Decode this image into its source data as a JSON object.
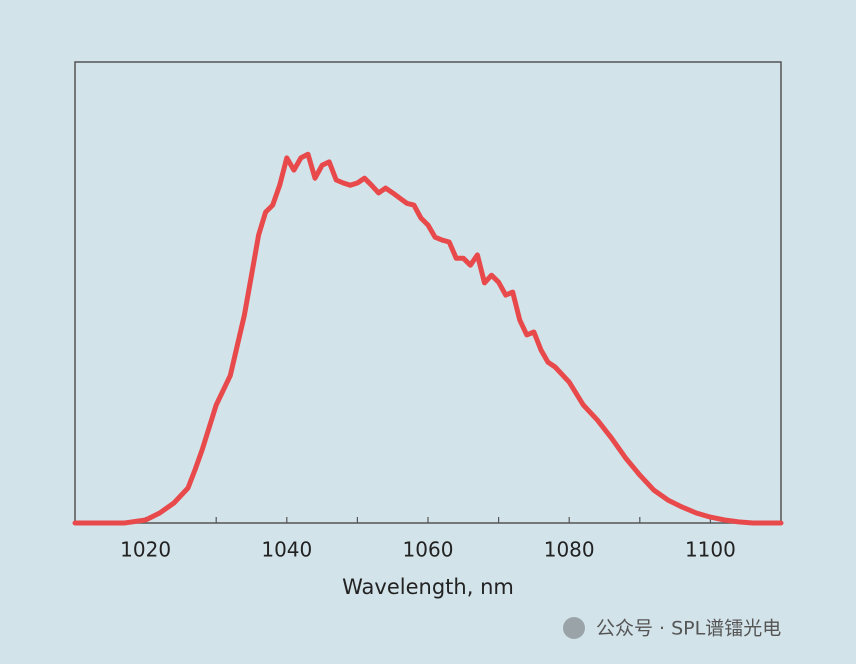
{
  "chart_data": {
    "type": "line",
    "xlabel": "Wavelength, nm",
    "xlim": [
      1010,
      1110
    ],
    "xticks": [
      1020,
      1040,
      1060,
      1080,
      1100
    ],
    "xminorticks": [
      1030,
      1050,
      1070,
      1090
    ],
    "ylim": [
      0,
      1.25
    ],
    "series": [
      {
        "color": "#e84a4c",
        "x": [
          1010,
          1017,
          1020,
          1022,
          1024,
          1026,
          1027,
          1028,
          1030,
          1032,
          1034,
          1035,
          1036,
          1037,
          1038,
          1039,
          1040,
          1041,
          1042,
          1043,
          1044,
          1045,
          1046,
          1047,
          1048,
          1049,
          1050,
          1051,
          1052,
          1053,
          1054,
          1055,
          1056,
          1057,
          1058,
          1059,
          1060,
          1061,
          1062,
          1063,
          1064,
          1065,
          1066,
          1067,
          1068,
          1069,
          1070,
          1071,
          1072,
          1073,
          1074,
          1075,
          1076,
          1077,
          1078,
          1080,
          1082,
          1084,
          1086,
          1088,
          1090,
          1092,
          1094,
          1096,
          1098,
          1100,
          1102,
          1104,
          1106,
          1110
        ],
        "values": [
          0,
          0,
          0.008,
          0.027,
          0.054,
          0.095,
          0.144,
          0.198,
          0.32,
          0.4,
          0.564,
          0.672,
          0.781,
          0.843,
          0.862,
          0.916,
          0.99,
          0.957,
          0.99,
          1.0,
          0.935,
          0.97,
          0.979,
          0.93,
          0.922,
          0.916,
          0.922,
          0.935,
          0.916,
          0.895,
          0.908,
          0.895,
          0.881,
          0.867,
          0.862,
          0.827,
          0.808,
          0.775,
          0.767,
          0.762,
          0.718,
          0.718,
          0.699,
          0.727,
          0.651,
          0.672,
          0.653,
          0.618,
          0.626,
          0.55,
          0.51,
          0.518,
          0.469,
          0.436,
          0.423,
          0.382,
          0.32,
          0.279,
          0.23,
          0.176,
          0.13,
          0.089,
          0.062,
          0.043,
          0.027,
          0.016,
          0.008,
          0.003,
          0,
          0
        ]
      }
    ],
    "watermark": "公众号 · SPL谱镭光电"
  }
}
